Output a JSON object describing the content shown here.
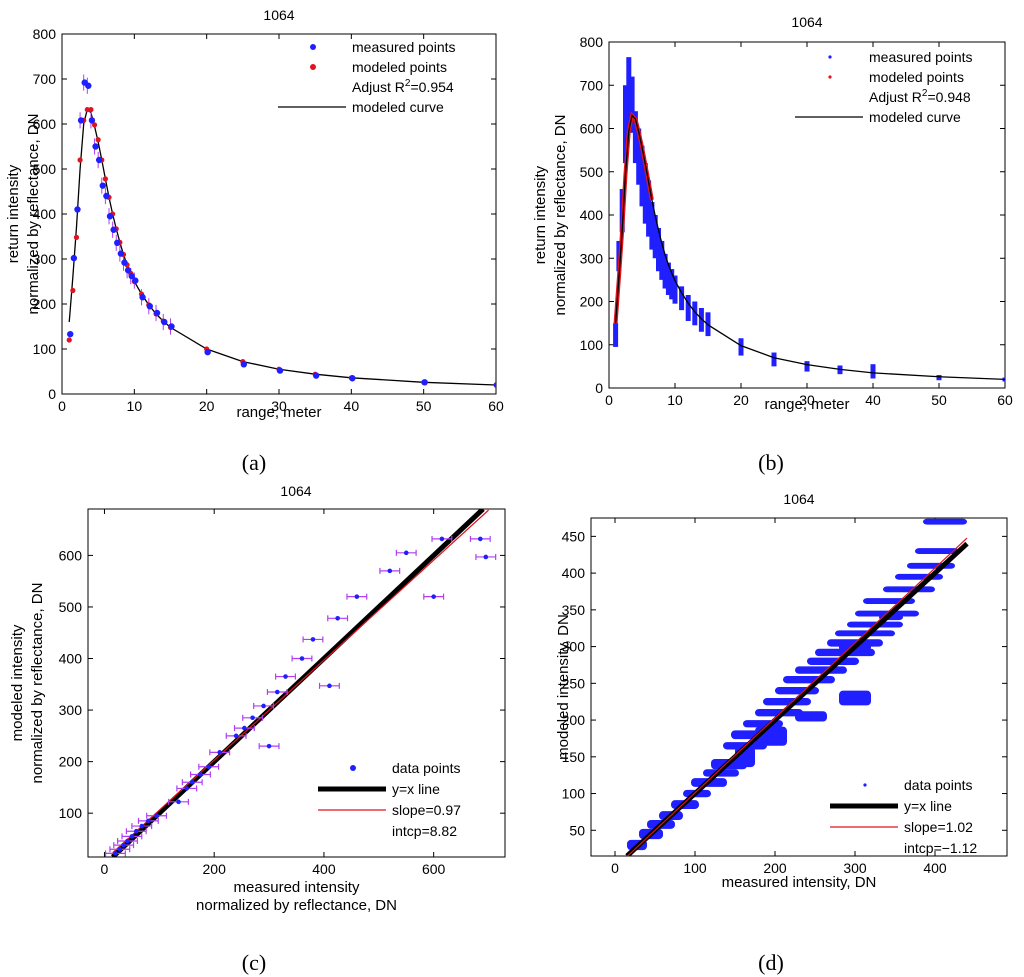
{
  "figure": {
    "panels": [
      {
        "caption": "(a)",
        "caption_letter": "a"
      },
      {
        "caption": "(b)",
        "caption_letter": "b"
      },
      {
        "caption": "(c)",
        "caption_letter": "c"
      },
      {
        "caption": "(d)",
        "caption_letter": "d"
      }
    ]
  },
  "colors": {
    "measured": "#1f1fff",
    "modeled": "#e0141e",
    "curve": "#000000",
    "errorbar": "#b03ff0",
    "fit_line": "#e0141e",
    "identity_line": "#000000"
  },
  "chart_data": [
    {
      "type": "scatter",
      "panel": "a",
      "title": "1064",
      "xlabel": "range, meter",
      "ylabel": "return intensity",
      "ylabel2": "normalized by reflectance, DN",
      "xlim": [
        0,
        60
      ],
      "ylim": [
        0,
        800
      ],
      "xticks": [
        0,
        10,
        20,
        30,
        40,
        50,
        60
      ],
      "yticks": [
        0,
        100,
        200,
        300,
        400,
        500,
        600,
        700,
        800
      ],
      "grid": false,
      "legend_position": "top-right",
      "legend": [
        {
          "label": "measured points",
          "marker": "dot",
          "color": "#1f1fff"
        },
        {
          "label": "modeled points",
          "marker": "dot",
          "color": "#e0141e"
        },
        {
          "label": "Adjust R",
          "sup": "2",
          "suffix": "=0.954",
          "marker": "none"
        },
        {
          "label": "modeled curve",
          "marker": "line",
          "color": "#000000"
        }
      ],
      "series": [
        {
          "name": "measured points",
          "x": [
            1,
            1.5,
            2,
            2.5,
            3,
            3.5,
            4,
            4.5,
            5,
            5.5,
            6,
            6.5,
            7,
            7.5,
            8,
            8.5,
            9,
            9.5,
            10,
            11,
            12,
            13,
            14,
            15,
            20,
            25,
            30,
            35,
            40,
            50,
            60
          ],
          "y": [
            133,
            302,
            410,
            608,
            692,
            685,
            608,
            550,
            520,
            463,
            440,
            395,
            365,
            336,
            312,
            292,
            275,
            262,
            252,
            215,
            195,
            180,
            160,
            150,
            93,
            66,
            52,
            41,
            35,
            26,
            20
          ]
        },
        {
          "name": "modeled points",
          "x": [
            1,
            1.5,
            2,
            2.5,
            3,
            3.5,
            4,
            4.5,
            5,
            5.5,
            6,
            6.5,
            7,
            7.5,
            8,
            8.5,
            9,
            9.5,
            10,
            11,
            12,
            13,
            14,
            15,
            20,
            25,
            30,
            35,
            40,
            50,
            60
          ],
          "y": [
            120,
            230,
            348,
            520,
            608,
            632,
            632,
            598,
            565,
            520,
            478,
            437,
            400,
            367,
            337,
            310,
            287,
            268,
            250,
            222,
            198,
            178,
            162,
            148,
            100,
            72,
            55,
            44,
            36,
            26,
            20
          ]
        }
      ],
      "curve": {
        "x": [
          1,
          1.5,
          2,
          2.5,
          3,
          3.5,
          4,
          4.5,
          5,
          5.5,
          6,
          6.5,
          7,
          7.5,
          8,
          8.5,
          9,
          9.5,
          10,
          11,
          12,
          13,
          14,
          15,
          20,
          25,
          30,
          35,
          40,
          50,
          60
        ],
        "y": [
          160,
          260,
          370,
          500,
          600,
          633,
          625,
          595,
          560,
          520,
          478,
          437,
          400,
          367,
          337,
          310,
          287,
          268,
          250,
          222,
          198,
          178,
          162,
          148,
          100,
          72,
          55,
          44,
          36,
          26,
          20
        ]
      }
    },
    {
      "type": "scatter",
      "panel": "b",
      "title": "1064",
      "xlabel": "range, meter",
      "ylabel": "return intensity",
      "ylabel2": "normalized by reflectance, DN",
      "xlim": [
        0,
        60
      ],
      "ylim": [
        0,
        800
      ],
      "xticks": [
        0,
        10,
        20,
        30,
        40,
        50,
        60
      ],
      "yticks": [
        0,
        100,
        200,
        300,
        400,
        500,
        600,
        700,
        800
      ],
      "grid": false,
      "legend_position": "top-right",
      "legend": [
        {
          "label": "measured points",
          "marker": "smalldot",
          "color": "#1f1fff"
        },
        {
          "label": "modeled points",
          "marker": "smalldot",
          "color": "#e0141e"
        },
        {
          "label": "Adjust R",
          "sup": "2",
          "suffix": "=0.948",
          "marker": "none"
        },
        {
          "label": "modeled curve",
          "marker": "line",
          "color": "#000000"
        }
      ],
      "measured_ranges": [
        {
          "x": 1,
          "ymin": 95,
          "ymax": 150
        },
        {
          "x": 1.5,
          "ymin": 270,
          "ymax": 340
        },
        {
          "x": 2,
          "ymin": 360,
          "ymax": 460
        },
        {
          "x": 2.5,
          "ymin": 520,
          "ymax": 700
        },
        {
          "x": 3,
          "ymin": 600,
          "ymax": 765
        },
        {
          "x": 3.5,
          "ymin": 590,
          "ymax": 720
        },
        {
          "x": 4,
          "ymin": 520,
          "ymax": 640
        },
        {
          "x": 4.5,
          "ymin": 470,
          "ymax": 600
        },
        {
          "x": 5,
          "ymin": 420,
          "ymax": 560
        },
        {
          "x": 5.5,
          "ymin": 380,
          "ymax": 520
        },
        {
          "x": 6,
          "ymin": 350,
          "ymax": 480
        },
        {
          "x": 6.5,
          "ymin": 320,
          "ymax": 430
        },
        {
          "x": 7,
          "ymin": 300,
          "ymax": 400
        },
        {
          "x": 7.5,
          "ymin": 270,
          "ymax": 370
        },
        {
          "x": 8,
          "ymin": 250,
          "ymax": 340
        },
        {
          "x": 8.5,
          "ymin": 230,
          "ymax": 310
        },
        {
          "x": 9,
          "ymin": 215,
          "ymax": 290
        },
        {
          "x": 9.5,
          "ymin": 205,
          "ymax": 275
        },
        {
          "x": 10,
          "ymin": 195,
          "ymax": 260
        },
        {
          "x": 11,
          "ymin": 180,
          "ymax": 235
        },
        {
          "x": 12,
          "ymin": 155,
          "ymax": 215
        },
        {
          "x": 13,
          "ymin": 145,
          "ymax": 200
        },
        {
          "x": 14,
          "ymin": 130,
          "ymax": 185
        },
        {
          "x": 15,
          "ymin": 120,
          "ymax": 175
        },
        {
          "x": 20,
          "ymin": 75,
          "ymax": 115
        },
        {
          "x": 25,
          "ymin": 50,
          "ymax": 82
        },
        {
          "x": 30,
          "ymin": 38,
          "ymax": 62
        },
        {
          "x": 35,
          "ymin": 32,
          "ymax": 52
        },
        {
          "x": 40,
          "ymin": 22,
          "ymax": 55
        },
        {
          "x": 50,
          "ymin": 18,
          "ymax": 30
        },
        {
          "x": 60,
          "ymin": 15,
          "ymax": 24
        }
      ],
      "curve": {
        "x": [
          1,
          1.5,
          2,
          2.5,
          3,
          3.5,
          4,
          4.5,
          5,
          5.5,
          6,
          6.5,
          7,
          7.5,
          8,
          8.5,
          9,
          9.5,
          10,
          11,
          12,
          13,
          14,
          15,
          20,
          25,
          30,
          35,
          40,
          50,
          60
        ],
        "y": [
          150,
          255,
          365,
          495,
          595,
          630,
          622,
          592,
          557,
          517,
          476,
          435,
          398,
          365,
          335,
          308,
          285,
          266,
          248,
          220,
          196,
          176,
          160,
          146,
          98,
          70,
          54,
          43,
          35,
          26,
          20
        ]
      }
    },
    {
      "type": "scatter",
      "panel": "c",
      "title": "1064",
      "xlabel": "measured intensity",
      "xlabel2": "normalized by reflectance, DN",
      "ylabel": "modeled intensity",
      "ylabel2": "normalized by reflectance, DN",
      "xlim": [
        -30,
        730
      ],
      "ylim": [
        15,
        690
      ],
      "xticks": [
        0,
        200,
        400,
        600
      ],
      "yticks": [
        100,
        200,
        300,
        400,
        500,
        600
      ],
      "grid": false,
      "legend_position": "bottom-right",
      "legend": [
        {
          "label": "data points",
          "marker": "dot",
          "color": "#1f1fff"
        },
        {
          "label": "y=x line",
          "marker": "thickline",
          "color": "#000000"
        },
        {
          "label": "slope=0.97",
          "marker": "redline",
          "color": "#e0141e"
        },
        {
          "label": "intcp=8.82",
          "marker": "none"
        }
      ],
      "series": [
        {
          "name": "data points",
          "x": [
            20,
            28,
            35,
            42,
            50,
            58,
            68,
            80,
            95,
            135,
            150,
            160,
            175,
            190,
            210,
            240,
            255,
            270,
            290,
            300,
            315,
            330,
            360,
            380,
            410,
            425,
            460,
            520,
            550,
            600,
            615,
            685,
            695
          ],
          "y": [
            22,
            30,
            38,
            46,
            55,
            65,
            75,
            85,
            95,
            122,
            148,
            160,
            175,
            190,
            218,
            250,
            265,
            285,
            308,
            230,
            335,
            365,
            400,
            437,
            347,
            478,
            520,
            570,
            605,
            520,
            632,
            632,
            597
          ],
          "xerr": 18
        }
      ],
      "identity_line": {
        "x": [
          15,
          690
        ],
        "y": [
          15,
          690
        ]
      },
      "fit_line": {
        "slope": 0.97,
        "intercept": 8.82
      }
    },
    {
      "type": "scatter",
      "panel": "d",
      "title": "1064",
      "xlabel": "measured intensity, DN",
      "ylabel": "modeled intensity, DN",
      "xlim": [
        -30,
        490
      ],
      "ylim": [
        15,
        475
      ],
      "xticks": [
        0,
        100,
        200,
        300,
        400
      ],
      "yticks": [
        50,
        100,
        150,
        200,
        250,
        300,
        350,
        400,
        450
      ],
      "grid": false,
      "legend_position": "bottom-right",
      "legend": [
        {
          "label": "data points",
          "marker": "smalldot",
          "color": "#1f1fff"
        },
        {
          "label": "y=x line",
          "marker": "thickline",
          "color": "#000000"
        },
        {
          "label": "slope=1.02",
          "marker": "redline",
          "color": "#e0141e"
        },
        {
          "label": "intcp=−1.12",
          "marker": "none"
        }
      ],
      "clusters": [
        {
          "x0": 15,
          "x1": 40,
          "y": 30,
          "h": 14
        },
        {
          "x0": 30,
          "x1": 60,
          "y": 45,
          "h": 14
        },
        {
          "x0": 40,
          "x1": 75,
          "y": 58,
          "h": 12
        },
        {
          "x0": 55,
          "x1": 85,
          "y": 70,
          "h": 12
        },
        {
          "x0": 70,
          "x1": 105,
          "y": 85,
          "h": 12
        },
        {
          "x0": 85,
          "x1": 120,
          "y": 100,
          "h": 10
        },
        {
          "x0": 95,
          "x1": 140,
          "y": 115,
          "h": 12
        },
        {
          "x0": 110,
          "x1": 155,
          "y": 128,
          "h": 10
        },
        {
          "x0": 120,
          "x1": 165,
          "y": 140,
          "h": 14
        },
        {
          "x0": 150,
          "x1": 175,
          "y": 150,
          "h": 28
        },
        {
          "x0": 135,
          "x1": 190,
          "y": 165,
          "h": 10
        },
        {
          "x0": 145,
          "x1": 200,
          "y": 180,
          "h": 12
        },
        {
          "x0": 160,
          "x1": 210,
          "y": 195,
          "h": 10
        },
        {
          "x0": 175,
          "x1": 215,
          "y": 178,
          "h": 26
        },
        {
          "x0": 175,
          "x1": 235,
          "y": 210,
          "h": 10
        },
        {
          "x0": 185,
          "x1": 245,
          "y": 225,
          "h": 10
        },
        {
          "x0": 200,
          "x1": 255,
          "y": 240,
          "h": 10
        },
        {
          "x0": 210,
          "x1": 275,
          "y": 255,
          "h": 10
        },
        {
          "x0": 225,
          "x1": 290,
          "y": 268,
          "h": 10
        },
        {
          "x0": 240,
          "x1": 305,
          "y": 280,
          "h": 10
        },
        {
          "x0": 250,
          "x1": 325,
          "y": 292,
          "h": 10
        },
        {
          "x0": 265,
          "x1": 335,
          "y": 305,
          "h": 10
        },
        {
          "x0": 275,
          "x1": 350,
          "y": 318,
          "h": 8
        },
        {
          "x0": 290,
          "x1": 360,
          "y": 330,
          "h": 8
        },
        {
          "x0": 300,
          "x1": 380,
          "y": 345,
          "h": 8
        },
        {
          "x0": 310,
          "x1": 375,
          "y": 362,
          "h": 8
        },
        {
          "x0": 335,
          "x1": 400,
          "y": 378,
          "h": 8
        },
        {
          "x0": 350,
          "x1": 410,
          "y": 395,
          "h": 8
        },
        {
          "x0": 365,
          "x1": 425,
          "y": 410,
          "h": 8
        },
        {
          "x0": 375,
          "x1": 430,
          "y": 430,
          "h": 8
        },
        {
          "x0": 385,
          "x1": 440,
          "y": 470,
          "h": 8
        },
        {
          "x0": 280,
          "x1": 320,
          "y": 300,
          "h": 14
        },
        {
          "x0": 280,
          "x1": 320,
          "y": 230,
          "h": 20
        },
        {
          "x0": 225,
          "x1": 265,
          "y": 205,
          "h": 14
        },
        {
          "x0": 330,
          "x1": 360,
          "y": 340,
          "h": 8
        }
      ],
      "identity_line": {
        "x": [
          15,
          440
        ],
        "y": [
          15,
          440
        ]
      },
      "fit_line": {
        "slope": 1.02,
        "intercept": -1.12
      }
    }
  ]
}
